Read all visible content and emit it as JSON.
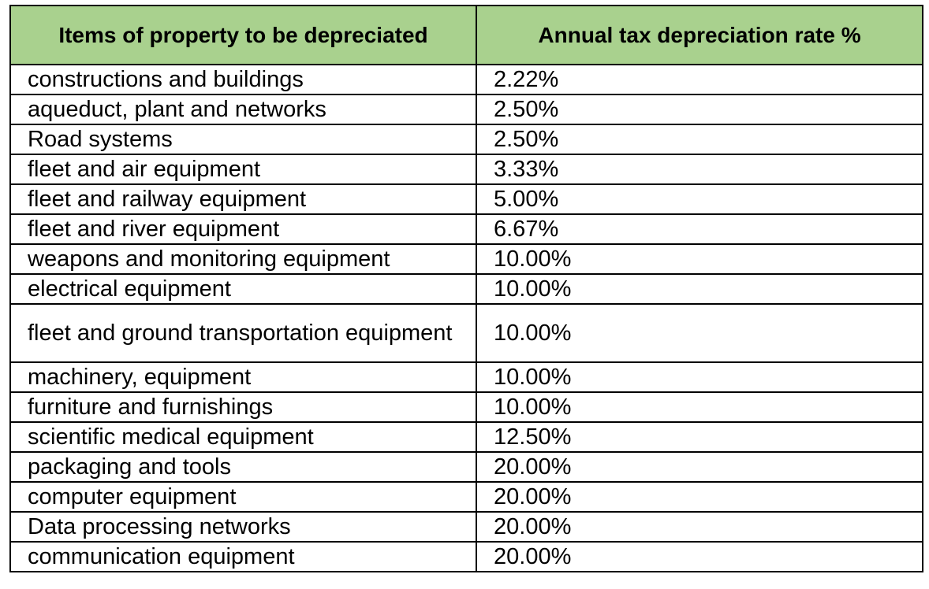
{
  "table": {
    "headers": {
      "item": "Items of property to be depreciated",
      "rate": "Annual tax depreciation rate %"
    },
    "rows": [
      {
        "item": "constructions and buildings",
        "rate": "2.22%"
      },
      {
        "item": "aqueduct, plant and networks",
        "rate": "2.50%"
      },
      {
        "item": "Road systems",
        "rate": "2.50%"
      },
      {
        "item": "fleet and air equipment",
        "rate": "3.33%"
      },
      {
        "item": "fleet and railway equipment",
        "rate": "5.00%"
      },
      {
        "item": "fleet and river equipment",
        "rate": "6.67%"
      },
      {
        "item": "weapons and monitoring equipment",
        "rate": "10.00%"
      },
      {
        "item": "electrical equipment",
        "rate": "10.00%"
      },
      {
        "item": "fleet and ground transportation equipment",
        "rate": "10.00%"
      },
      {
        "item": "machinery, equipment",
        "rate": "10.00%"
      },
      {
        "item": "furniture and furnishings",
        "rate": "10.00%"
      },
      {
        "item": "scientific medical equipment",
        "rate": "12.50%"
      },
      {
        "item": "packaging and tools",
        "rate": "20.00%"
      },
      {
        "item": "computer equipment",
        "rate": "20.00%"
      },
      {
        "item": "Data processing networks",
        "rate": "20.00%"
      },
      {
        "item": "communication equipment",
        "rate": "20.00%"
      }
    ]
  },
  "colors": {
    "header_background": "#a9d18e",
    "border": "#000000"
  }
}
